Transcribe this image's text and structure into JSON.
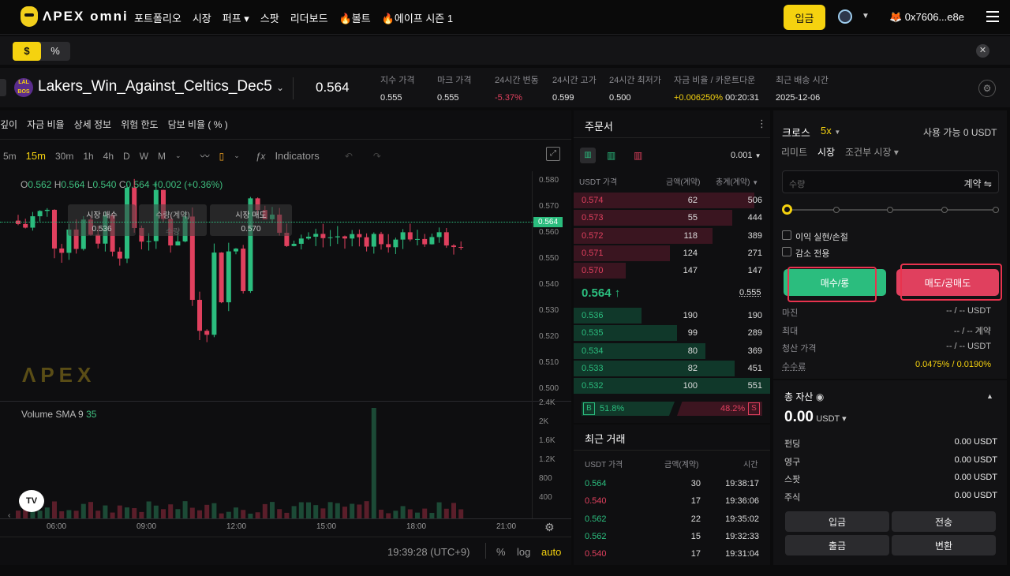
{
  "top": {
    "logo_text": "ΛPEX omni",
    "nav": [
      "포트폴리오",
      "시장",
      "퍼프 ▾",
      "스팟",
      "리더보드",
      "🔥볼트",
      "🔥에이프 시즌 1"
    ],
    "deposit": "입금",
    "chain_icon": "arbitrum-icon",
    "wallet": "🦊 0x7606...e8e"
  },
  "subbar": {
    "dollar": "$",
    "percent": "%"
  },
  "market": {
    "badge": "LAL BOS",
    "symbol": "Lakers_Win_Against_Celtics_Dec5",
    "price": "0.564",
    "stats": [
      {
        "label": "지수 가격",
        "value": "0.555"
      },
      {
        "label": "마크 가격",
        "value": "0.555"
      },
      {
        "label": "24시간 변동",
        "value": "-5.37%"
      },
      {
        "label": "24시간 고가",
        "value": "0.599"
      },
      {
        "label": "24시간 최저가",
        "value": "0.500"
      },
      {
        "label": "자금 비율 / 카운트다운",
        "value": "+0.006250%",
        "value2": " 00:20:31"
      },
      {
        "label": "최근 배송 시간",
        "value": "2025-12-06"
      }
    ]
  },
  "chart": {
    "tabs": [
      "깊이",
      "자금 비율",
      "상세 정보",
      "위험 한도",
      "담보 비율 ( % )"
    ],
    "timeframes": [
      "5m",
      "15m",
      "30m",
      "1h",
      "4h",
      "D",
      "W",
      "M"
    ],
    "active_tf": "15m",
    "indicators": "Indicators",
    "ohlc": {
      "o": "0.562",
      "h": "0.564",
      "l": "0.540",
      "c": "0.564",
      "chg": "+0.002 (+0.36%)"
    },
    "y_ticks": [
      "0.580",
      "0.570",
      "0.560",
      "0.550",
      "0.540",
      "0.530",
      "0.520",
      "0.510",
      "0.500"
    ],
    "current_price_tag": "0.564",
    "vol_ticks": [
      "2.4K",
      "2K",
      "1.6K",
      "1.2K",
      "800",
      "400"
    ],
    "x_ticks": [
      "06:00",
      "09:00",
      "12:00",
      "15:00",
      "18:00",
      "21:00"
    ],
    "volume_label": "Volume SMA 9",
    "volume_value": "35",
    "overlay": {
      "market_buy": "시장 매수",
      "qty": "수량(계약)",
      "market_sell": "시장 매도",
      "buy_price": "0.536",
      "qty_value": "수량",
      "sell_price": "0.570"
    },
    "watermark": "ΛPEX",
    "clock": "19:39:28 (UTC+9)",
    "scale_opts": [
      "%",
      "log",
      "auto"
    ]
  },
  "chart_data": {
    "type": "candlestick",
    "title": "",
    "ylim": [
      0.5,
      0.58
    ],
    "last": 0.564
  },
  "orderbook": {
    "title": "주문서",
    "tick": "0.001",
    "headers": [
      "USDT 가격",
      "금액(계약)",
      "총계(계약)"
    ],
    "asks": [
      {
        "p": "0.574",
        "a": "62",
        "t": "506"
      },
      {
        "p": "0.573",
        "a": "55",
        "t": "444"
      },
      {
        "p": "0.572",
        "a": "118",
        "t": "389"
      },
      {
        "p": "0.571",
        "a": "124",
        "t": "271"
      },
      {
        "p": "0.570",
        "a": "147",
        "t": "147"
      }
    ],
    "mid": "0.564 ↑",
    "mid_mark": "0.555",
    "bids": [
      {
        "p": "0.536",
        "a": "190",
        "t": "190"
      },
      {
        "p": "0.535",
        "a": "99",
        "t": "289"
      },
      {
        "p": "0.534",
        "a": "80",
        "t": "369"
      },
      {
        "p": "0.533",
        "a": "82",
        "t": "451"
      },
      {
        "p": "0.532",
        "a": "100",
        "t": "551"
      }
    ],
    "buy_pct": "51.8%",
    "sell_pct": "48.2%",
    "b": "B",
    "s": "S"
  },
  "trades": {
    "title": "최근 거래",
    "headers": [
      "USDT 가격",
      "금액(계약)",
      "시간"
    ],
    "rows": [
      {
        "p": "0.564",
        "a": "30",
        "t": "19:38:17",
        "side": "buy"
      },
      {
        "p": "0.540",
        "a": "17",
        "t": "19:36:06",
        "side": "sell"
      },
      {
        "p": "0.562",
        "a": "22",
        "t": "19:35:02",
        "side": "buy"
      },
      {
        "p": "0.562",
        "a": "15",
        "t": "19:32:33",
        "side": "buy"
      },
      {
        "p": "0.540",
        "a": "17",
        "t": "19:31:04",
        "side": "sell"
      }
    ]
  },
  "order": {
    "cross": "크로스",
    "leverage": "5x",
    "available": "사용 가능 0 USDT",
    "types": [
      "리미트",
      "시장",
      "조건부 시장 ▾"
    ],
    "qty_placeholder": "수량",
    "qty_unit": "계약 ⇋",
    "tpsl": "이익 실현/손절",
    "reduce": "감소 전용",
    "buy": "매수/롱",
    "sell": "매도/공매도",
    "rows": [
      {
        "l": "마진",
        "r": "-- / -- USDT"
      },
      {
        "l": "최대",
        "r": "-- / -- 계약"
      },
      {
        "l": "청산 가격",
        "r": "-- / -- USDT"
      },
      {
        "l": "수수료",
        "r": "0.0475% / 0.0190%"
      }
    ]
  },
  "assets": {
    "title": "총 자산",
    "total": "0.00",
    "unit": "USDT ▾",
    "rows": [
      {
        "l": "펀딩",
        "r": "0.00 USDT"
      },
      {
        "l": "영구",
        "r": "0.00 USDT"
      },
      {
        "l": "스팟",
        "r": "0.00 USDT"
      },
      {
        "l": "주식",
        "r": "0.00 USDT"
      }
    ],
    "buttons": [
      "입금",
      "전송",
      "출금",
      "변환"
    ]
  },
  "colors": {
    "accent": "#f5d20f",
    "up": "#2bbd7e",
    "down": "#e0405e"
  }
}
